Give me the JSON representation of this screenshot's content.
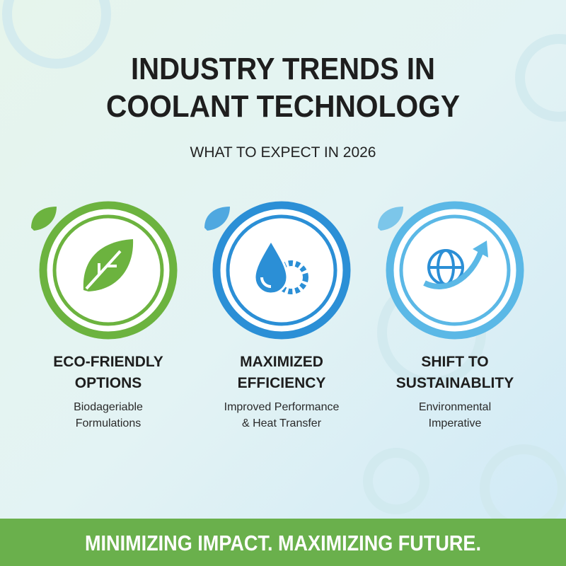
{
  "header": {
    "title_lines": [
      "INDUSTRY TRENDS IN",
      "COOLANT TECHNOLOGY"
    ],
    "subtitle": "WHAT TO EXPECT IN 2026"
  },
  "cards": [
    {
      "title_lines": [
        "ECO-FRIENDLY",
        "OPTIONS"
      ],
      "description_lines": [
        "Biodageriable",
        "Formulations"
      ]
    },
    {
      "title_lines": [
        "MAXIMIZED",
        "EFFICIENCY"
      ],
      "description_lines": [
        "Improved Performance",
        "& Heat Transfer"
      ]
    },
    {
      "title_lines": [
        "SHIFT TO",
        "SUSTAINABLITY"
      ],
      "description_lines": [
        "Environmental",
        "Imperative"
      ]
    }
  ],
  "footer": {
    "text": "MINIMIZING IMPACT. MAXIMIZING FUTURE."
  }
}
